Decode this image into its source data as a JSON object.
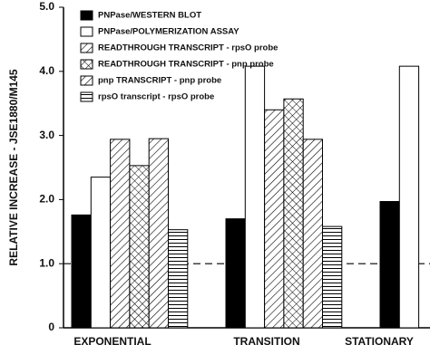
{
  "chart_data": {
    "type": "bar",
    "y_label": "RELATIVE INCREASE - JSE1880/M145",
    "categories": [
      "EXPONENTIAL",
      "TRANSITION",
      "STATIONARY"
    ],
    "series": [
      {
        "name": "PNPase/WESTERN BLOT",
        "color": "#000000",
        "pattern": "solid",
        "values": [
          1.76,
          1.7,
          1.97
        ]
      },
      {
        "name": "PNPase/POLYMERIZATION ASSAY",
        "color": "#ffffff",
        "pattern": "none",
        "values": [
          2.35,
          4.08,
          4.08
        ]
      },
      {
        "name": "READTHROUGH TRANSCRIPT - rpsO probe",
        "color": "#ffffff",
        "pattern": "diagonal",
        "values": [
          2.94,
          3.4,
          null
        ]
      },
      {
        "name": "READTHROUGH TRANSCRIPT - pnp probe",
        "color": "#ffffff",
        "pattern": "crosshatch",
        "values": [
          2.53,
          3.57,
          null
        ]
      },
      {
        "name": "pnp TRANSCRIPT - pnp probe",
        "color": "#ffffff",
        "pattern": "diagonal",
        "values": [
          2.95,
          2.94,
          null
        ]
      },
      {
        "name": "rpsO transcript - rpsO probe",
        "color": "#ffffff",
        "pattern": "horizontal",
        "values": [
          1.53,
          1.58,
          null
        ]
      }
    ],
    "reference_line": 1,
    "ylim": [
      0,
      5
    ],
    "yticks": [
      0,
      {
        "value": 1,
        "label": "1.0"
      },
      {
        "value": 2,
        "label": "2.0"
      },
      {
        "value": 3,
        "label": "3.0"
      },
      {
        "value": 4,
        "label": "4.0"
      },
      {
        "value": 5,
        "label": "5.0"
      }
    ]
  }
}
